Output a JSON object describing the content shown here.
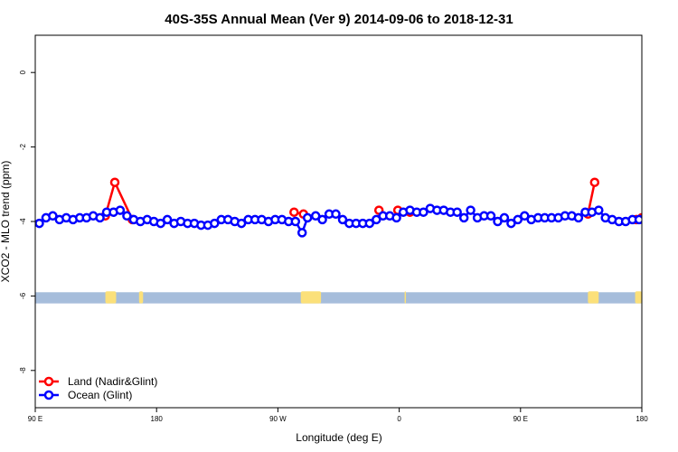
{
  "chart_data": {
    "type": "line",
    "title": "40S-35S Annual Mean (Ver 9)   2014-09-06 to 2018-12-31",
    "xlabel": "Longitude (deg E)",
    "ylabel": "XCO2 - MLO trend (ppm)",
    "xlim": [
      90,
      540
    ],
    "ylim": [
      -9,
      1
    ],
    "x_ticks": [
      {
        "value": 90,
        "label": "90 E"
      },
      {
        "value": 180,
        "label": "180"
      },
      {
        "value": 270,
        "label": "90 W"
      },
      {
        "value": 360,
        "label": "0"
      },
      {
        "value": 450,
        "label": "90 E"
      },
      {
        "value": 540,
        "label": "180"
      }
    ],
    "y_ticks": [
      {
        "value": 0,
        "label": "0"
      },
      {
        "value": -2,
        "label": "-2"
      },
      {
        "value": -4,
        "label": "-4"
      },
      {
        "value": -6,
        "label": "-6"
      },
      {
        "value": -8,
        "label": "-8"
      }
    ],
    "map_strip": {
      "y_top": -5.9,
      "y_bottom": -6.2,
      "ocean_color": "#a6bddb",
      "land_color": "#fbe07a",
      "land_ranges": [
        [
          142,
          150
        ],
        [
          167,
          170
        ],
        [
          287,
          302
        ],
        [
          364,
          365
        ],
        [
          500,
          508
        ],
        [
          535,
          540
        ]
      ]
    },
    "series": [
      {
        "name": "Land (Nadir&Glint)",
        "color": "#ff0000",
        "x": [
          142,
          149,
          162,
          282,
          289,
          345,
          359,
          368,
          500,
          505,
          536,
          540
        ],
        "values": [
          -3.85,
          -2.95,
          -3.95,
          -3.75,
          -3.8,
          -3.7,
          -3.7,
          -3.75,
          -3.8,
          -2.95,
          -3.95,
          -3.9
        ],
        "segments": [
          [
            0,
            3
          ],
          [
            3,
            5
          ],
          [
            8,
            10
          ]
        ]
      },
      {
        "name": "Ocean (Glint)",
        "color": "#0000ff",
        "x": [
          93,
          98,
          103,
          108,
          113,
          118,
          123,
          128,
          133,
          138,
          143,
          148,
          153,
          158,
          163,
          168,
          173,
          178,
          183,
          188,
          193,
          198,
          203,
          208,
          213,
          218,
          223,
          228,
          233,
          238,
          243,
          248,
          253,
          258,
          263,
          268,
          273,
          278,
          283,
          288,
          292,
          298,
          303,
          308,
          313,
          318,
          323,
          328,
          333,
          338,
          343,
          348,
          353,
          358,
          363,
          368,
          373,
          378,
          383,
          388,
          393,
          398,
          403,
          408,
          413,
          418,
          423,
          428,
          433,
          438,
          443,
          448,
          453,
          458,
          463,
          468,
          473,
          478,
          483,
          488,
          493,
          498,
          503,
          508,
          513,
          518,
          523,
          528,
          533,
          538
        ],
        "values": [
          -4.05,
          -3.9,
          -3.85,
          -3.95,
          -3.9,
          -3.95,
          -3.9,
          -3.9,
          -3.85,
          -3.9,
          -3.75,
          -3.75,
          -3.7,
          -3.85,
          -3.95,
          -4.0,
          -3.95,
          -4.0,
          -4.05,
          -3.95,
          -4.05,
          -4.0,
          -4.05,
          -4.05,
          -4.1,
          -4.1,
          -4.05,
          -3.95,
          -3.95,
          -4.0,
          -4.05,
          -3.95,
          -3.95,
          -3.95,
          -4.0,
          -3.95,
          -3.95,
          -4.0,
          -4.0,
          -4.3,
          -3.9,
          -3.85,
          -3.95,
          -3.8,
          -3.8,
          -3.95,
          -4.05,
          -4.05,
          -4.05,
          -4.05,
          -3.95,
          -3.85,
          -3.85,
          -3.9,
          -3.75,
          -3.7,
          -3.75,
          -3.75,
          -3.65,
          -3.7,
          -3.7,
          -3.75,
          -3.75,
          -3.9,
          -3.7,
          -3.9,
          -3.85,
          -3.85,
          -4.0,
          -3.9,
          -4.05,
          -3.95,
          -3.85,
          -3.95,
          -3.9,
          -3.9,
          -3.9,
          -3.9,
          -3.85,
          -3.85,
          -3.9,
          -3.75,
          -3.75,
          -3.7,
          -3.9,
          -3.95,
          -4.0,
          -4.0,
          -3.95,
          -3.95
        ]
      }
    ]
  }
}
